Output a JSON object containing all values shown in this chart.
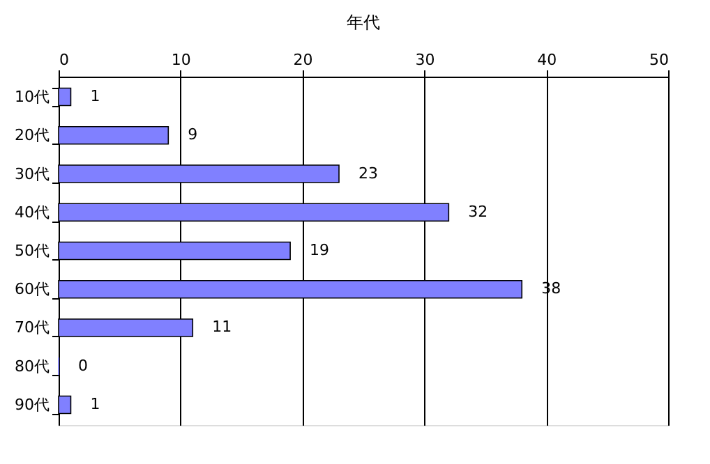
{
  "chart_data": {
    "type": "bar",
    "orientation": "horizontal",
    "title": "年代",
    "categories": [
      "10代",
      "20代",
      "30代",
      "40代",
      "50代",
      "60代",
      "70代",
      "80代",
      "90代"
    ],
    "values": [
      1,
      9,
      23,
      32,
      19,
      38,
      11,
      0,
      1
    ],
    "color": "#8080ff",
    "xlim": [
      0,
      50
    ],
    "xticks": [
      0,
      10,
      20,
      30,
      40,
      50
    ],
    "grid": "x",
    "data_labels": true
  }
}
